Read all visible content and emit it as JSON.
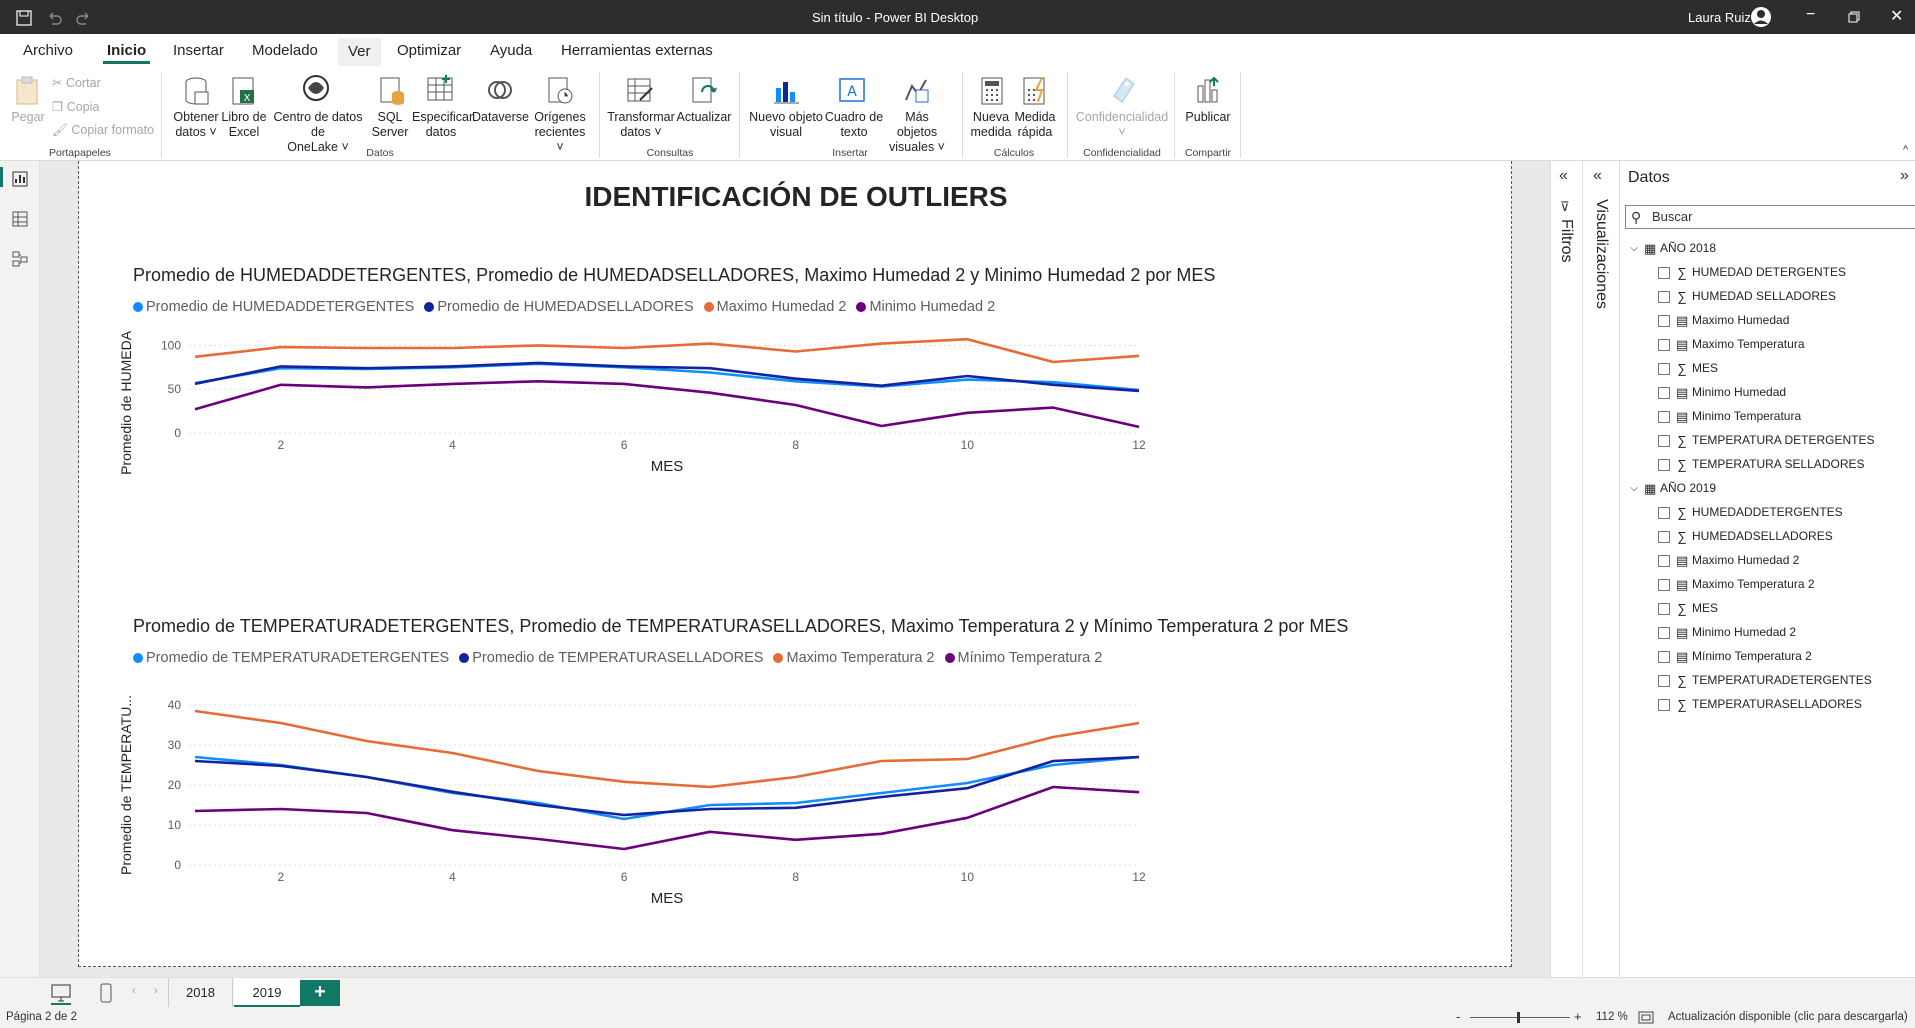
{
  "titlebar": {
    "title": "Sin título - Power BI Desktop",
    "user": "Laura Ruiz"
  },
  "ribbon_tabs": [
    "Archivo",
    "Inicio",
    "Insertar",
    "Modelado",
    "Ver",
    "Optimizar",
    "Ayuda",
    "Herramientas externas"
  ],
  "ribbon": {
    "clipboard": {
      "pegar": "Pegar",
      "cortar": "Cortar",
      "copia": "Copia",
      "copiar_formato": "Copiar formato",
      "group": "Portapapeles"
    },
    "datos": {
      "obtener": [
        "Obtener",
        "datos ˅"
      ],
      "excel": [
        "Libro de",
        "Excel"
      ],
      "onelake": [
        "Centro de datos de",
        "OneLake ˅"
      ],
      "sql": [
        "SQL",
        "Server"
      ],
      "especificar": [
        "Especificar",
        "datos"
      ],
      "dataverse": [
        "Dataverse",
        ""
      ],
      "origenes": [
        "Orígenes",
        "recientes ˅"
      ],
      "group": "Datos"
    },
    "consultas": {
      "transformar": [
        "Transformar",
        "datos ˅"
      ],
      "actualizar": [
        "Actualizar",
        ""
      ],
      "group": "Consultas"
    },
    "insertar": {
      "nuevo": [
        "Nuevo objeto",
        "visual"
      ],
      "cuadro": [
        "Cuadro de",
        "texto"
      ],
      "mas": [
        "Más objetos",
        "visuales ˅"
      ],
      "group": "Insertar"
    },
    "calculos": {
      "medida": [
        "Nueva",
        "medida"
      ],
      "rapida": [
        "Medida",
        "rápida"
      ],
      "group": "Cálculos"
    },
    "confidencialidad": {
      "btn": [
        "Confidencialidad",
        "˅"
      ],
      "group": "Confidencialidad"
    },
    "compartir": {
      "btn": [
        "Publicar",
        ""
      ],
      "group": "Compartir"
    }
  },
  "page": {
    "title": "IDENTIFICACIÓN DE OUTLIERS"
  },
  "panels": {
    "filtros": "Filtros",
    "visualizaciones": "Visualizaciones",
    "datos": "Datos",
    "search_placeholder": "Buscar"
  },
  "fields": {
    "tables": [
      {
        "name": "AÑO 2018",
        "items": [
          {
            "label": "HUMEDAD DETERGENTES",
            "icon": "sigma"
          },
          {
            "label": "HUMEDAD SELLADORES",
            "icon": "sigma"
          },
          {
            "label": "Maximo Humedad",
            "icon": "calc"
          },
          {
            "label": "Maximo Temperatura",
            "icon": "calc"
          },
          {
            "label": "MES",
            "icon": "sigma"
          },
          {
            "label": "Minimo Humedad",
            "icon": "calc"
          },
          {
            "label": "Minimo Temperatura",
            "icon": "calc"
          },
          {
            "label": "TEMPERATURA DETERGENTES",
            "icon": "sigma"
          },
          {
            "label": "TEMPERATURA SELLADORES",
            "icon": "sigma"
          }
        ]
      },
      {
        "name": "AÑO 2019",
        "items": [
          {
            "label": "HUMEDADDETERGENTES",
            "icon": "sigma"
          },
          {
            "label": "HUMEDADSELLADORES",
            "icon": "sigma"
          },
          {
            "label": "Maximo Humedad 2",
            "icon": "calc"
          },
          {
            "label": "Maximo Temperatura 2",
            "icon": "calc"
          },
          {
            "label": "MES",
            "icon": "sigma"
          },
          {
            "label": "Minimo Humedad 2",
            "icon": "calc"
          },
          {
            "label": "Mínimo Temperatura 2",
            "icon": "calc"
          },
          {
            "label": "TEMPERATURADETERGENTES",
            "icon": "sigma"
          },
          {
            "label": "TEMPERATURASELLADORES",
            "icon": "sigma"
          }
        ]
      }
    ]
  },
  "page_tabs": [
    "2018",
    "2019"
  ],
  "active_tab": "2019",
  "status": {
    "page": "Página 2 de 2",
    "zoom": "112 %",
    "minus": "-",
    "plus": "+",
    "update": "Actualización disponible (clic para descargarla)"
  },
  "chart_data": [
    {
      "type": "line",
      "title": "Promedio de HUMEDADDETERGENTES, Promedio de HUMEDADSELLADORES, Maximo Humedad 2 y Minimo Humedad 2 por MES",
      "xlabel": "MES",
      "ylabel": "Promedio de HUMEDADD...",
      "x": [
        1,
        2,
        3,
        4,
        5,
        6,
        7,
        8,
        9,
        10,
        11,
        12
      ],
      "xticks": [
        "2",
        "4",
        "6",
        "8",
        "10",
        "12"
      ],
      "yticks": [
        "0",
        "50",
        "100"
      ],
      "ylim": [
        0,
        105
      ],
      "series": [
        {
          "name": "Promedio de HUMEDADDETERGENTES",
          "color": "#118dff",
          "values": [
            57,
            74,
            73,
            75,
            79,
            75,
            69,
            59,
            53,
            61,
            58,
            49
          ]
        },
        {
          "name": "Promedio de HUMEDADSELLADORES",
          "color": "#12239e",
          "values": [
            56,
            76,
            74,
            76,
            80,
            76,
            74,
            62,
            54,
            65,
            55,
            48
          ]
        },
        {
          "name": "Maximo Humedad 2",
          "color": "#e66c37",
          "values": [
            87,
            98,
            97,
            97,
            100,
            97,
            102,
            93,
            102,
            107,
            81,
            88
          ]
        },
        {
          "name": "Minimo Humedad 2",
          "color": "#6b007b",
          "values": [
            27,
            55,
            52,
            56,
            59,
            56,
            46,
            32,
            8,
            23,
            29,
            7
          ]
        }
      ]
    },
    {
      "type": "line",
      "title": "Promedio de TEMPERATURADETERGENTES, Promedio de TEMPERATURASELLADORES, Maximo Temperatura 2 y Mínimo Temperatura 2 por MES",
      "xlabel": "MES",
      "ylabel": "Promedio de TEMPERATU...",
      "x": [
        1,
        2,
        3,
        4,
        5,
        6,
        7,
        8,
        9,
        10,
        11,
        12
      ],
      "xticks": [
        "2",
        "4",
        "6",
        "8",
        "10",
        "12"
      ],
      "yticks": [
        "0",
        "10",
        "20",
        "30",
        "40"
      ],
      "ylim": [
        0,
        40
      ],
      "series": [
        {
          "name": "Promedio de TEMPERATURADETERGENTES",
          "color": "#118dff",
          "values": [
            27,
            25,
            22,
            18,
            15.5,
            11.5,
            15,
            15.5,
            18,
            20.5,
            25,
            27
          ]
        },
        {
          "name": "Promedio de TEMPERATURASELLADORES",
          "color": "#12239e",
          "values": [
            26,
            24.8,
            22,
            18.3,
            15,
            12.5,
            14,
            14.3,
            17,
            19.2,
            26,
            27
          ]
        },
        {
          "name": "Maximo Temperatura 2",
          "color": "#e66c37",
          "values": [
            38.5,
            35.5,
            31,
            28,
            23.5,
            20.8,
            19.5,
            22,
            26,
            26.5,
            32,
            35.5
          ]
        },
        {
          "name": "Mínimo Temperatura 2",
          "color": "#6b007b",
          "values": [
            13.5,
            14,
            13,
            8.7,
            6.5,
            4,
            8.3,
            6.3,
            7.8,
            11.8,
            19.5,
            18.2
          ]
        }
      ]
    }
  ]
}
